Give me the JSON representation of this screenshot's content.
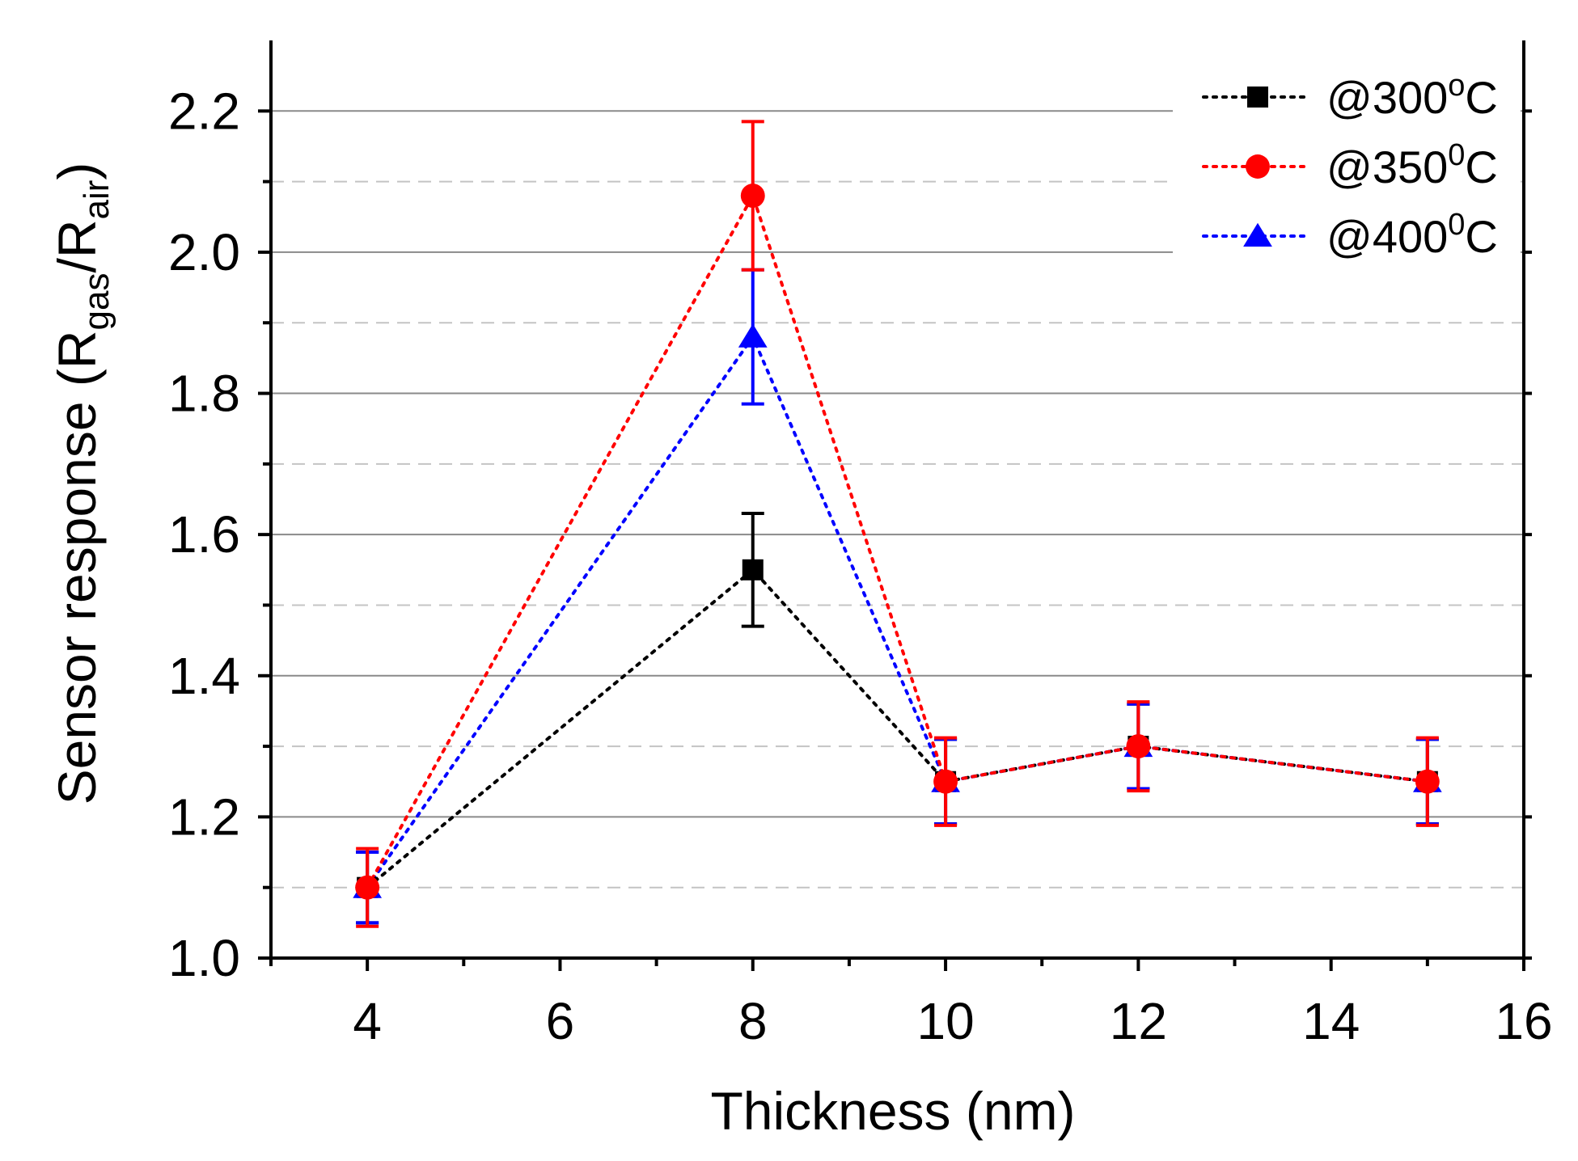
{
  "chart_data": {
    "type": "line",
    "title": "",
    "xlabel": "Thickness (nm)",
    "ylabel": {
      "main": "Sensor response (R",
      "sub1": "gas",
      "mid": "/R",
      "sub2": "air",
      "end": ")"
    },
    "xlim": [
      3,
      16
    ],
    "ylim": [
      1.0,
      2.3
    ],
    "x_ticks": [
      4,
      6,
      8,
      10,
      12,
      14,
      16
    ],
    "x_minor_ticks": [
      3,
      5,
      7,
      9,
      11,
      13,
      15
    ],
    "y_ticks": [
      1.0,
      1.2,
      1.4,
      1.6,
      1.8,
      2.0,
      2.2
    ],
    "y_minor_gridlines": [
      1.1,
      1.3,
      1.5,
      1.7,
      1.9,
      2.1
    ],
    "x_tick_labels": [
      "4",
      "6",
      "8",
      "10",
      "12",
      "14",
      "16"
    ],
    "y_tick_labels": [
      "1.0",
      "1.2",
      "1.4",
      "1.6",
      "1.8",
      "2.0",
      "2.2"
    ],
    "grid": "horizontal",
    "legend_position": "top-right",
    "x": [
      4,
      8,
      10,
      12,
      15
    ],
    "series": [
      {
        "name": "@300",
        "superscript": "o",
        "unit": "C",
        "color": "#000000",
        "marker": "square",
        "values": [
          1.1,
          1.55,
          1.25,
          1.3,
          1.25
        ],
        "errors": [
          0.05,
          0.08,
          0.06,
          0.06,
          0.06
        ]
      },
      {
        "name": "@350",
        "superscript": "0",
        "unit": "C",
        "color": "#ff0000",
        "marker": "circle",
        "values": [
          1.1,
          2.08,
          1.25,
          1.3,
          1.25
        ],
        "errors": [
          0.055,
          0.105,
          0.062,
          0.063,
          0.062
        ]
      },
      {
        "name": "@400",
        "superscript": "0",
        "unit": "C",
        "color": "#0000ff",
        "marker": "triangle",
        "values": [
          1.1,
          1.88,
          1.25,
          1.3,
          1.25
        ],
        "errors": [
          0.05,
          0.095,
          0.06,
          0.06,
          0.06
        ]
      }
    ]
  }
}
